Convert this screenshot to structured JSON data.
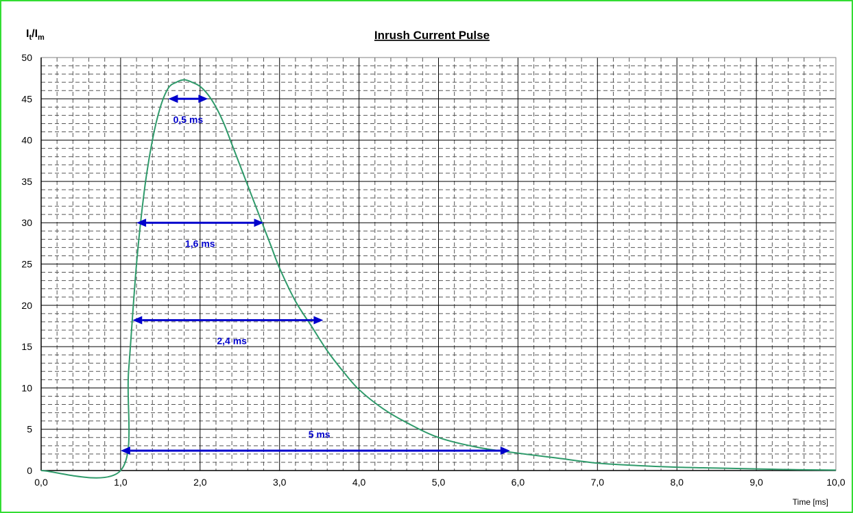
{
  "chart_data": {
    "type": "line",
    "title": "Inrush Current Pulse",
    "xlabel": "Time [ms]",
    "ylabel": {
      "main": "I",
      "sub1": "t",
      "mid": "/I",
      "sub2": "m"
    },
    "xlim": [
      0,
      10
    ],
    "ylim": [
      0,
      50
    ],
    "xticks": [
      0,
      1,
      2,
      3,
      4,
      5,
      6,
      7,
      8,
      9,
      10
    ],
    "xtick_labels": [
      "0,0",
      "1,0",
      "2,0",
      "3,0",
      "4,0",
      "5,0",
      "6,0",
      "7,0",
      "8,0",
      "9,0",
      "10,0"
    ],
    "yticks": [
      0,
      5,
      10,
      15,
      20,
      25,
      30,
      35,
      40,
      45,
      50
    ],
    "ytick_labels": [
      "0",
      "5",
      "10",
      "15",
      "20",
      "25",
      "30",
      "35",
      "40",
      "45",
      "50"
    ],
    "grid": true,
    "series": [
      {
        "color": "#2e9a6a",
        "x": [
          0,
          1.0,
          1.1,
          1.2,
          1.3,
          1.4,
          1.5,
          1.6,
          1.7,
          1.8,
          1.9,
          2.0,
          2.1,
          2.2,
          2.3,
          2.4,
          2.5,
          2.6,
          2.7,
          2.8,
          2.9,
          3.0,
          3.2,
          3.4,
          3.6,
          3.8,
          4.0,
          4.3,
          4.6,
          5.0,
          5.5,
          6.0,
          6.5,
          7.0,
          7.5,
          8.0,
          8.5,
          9.0,
          9.5,
          10.0
        ],
        "y": [
          0,
          0,
          12,
          25,
          34,
          40,
          44,
          46.3,
          47,
          47.3,
          47,
          46.5,
          45.5,
          44,
          42,
          39.5,
          37,
          34.5,
          32,
          29.5,
          27,
          24.5,
          20.5,
          17.5,
          14.5,
          12,
          9.8,
          7.5,
          5.8,
          4,
          2.8,
          2.1,
          1.5,
          0.9,
          0.6,
          0.4,
          0.3,
          0.2,
          0.1,
          0.05
        ]
      }
    ],
    "annotations": [
      {
        "label": "0,5 ms",
        "x1": 1.6,
        "x2": 2.1,
        "y": 45,
        "label_x": 1.85,
        "label_y": 42.5
      },
      {
        "label": "1,6 ms",
        "x1": 1.2,
        "x2": 2.8,
        "y": 30,
        "label_x": 2.0,
        "label_y": 27.5
      },
      {
        "label": "2,4 ms",
        "x1": 1.15,
        "x2": 3.55,
        "y": 18.2,
        "label_x": 2.4,
        "label_y": 15.7
      },
      {
        "label": "5 ms",
        "x1": 1.0,
        "x2": 5.9,
        "y": 2.4,
        "label_x": 3.5,
        "label_y": 4.4
      }
    ],
    "annotation_color": "#0000cc"
  }
}
